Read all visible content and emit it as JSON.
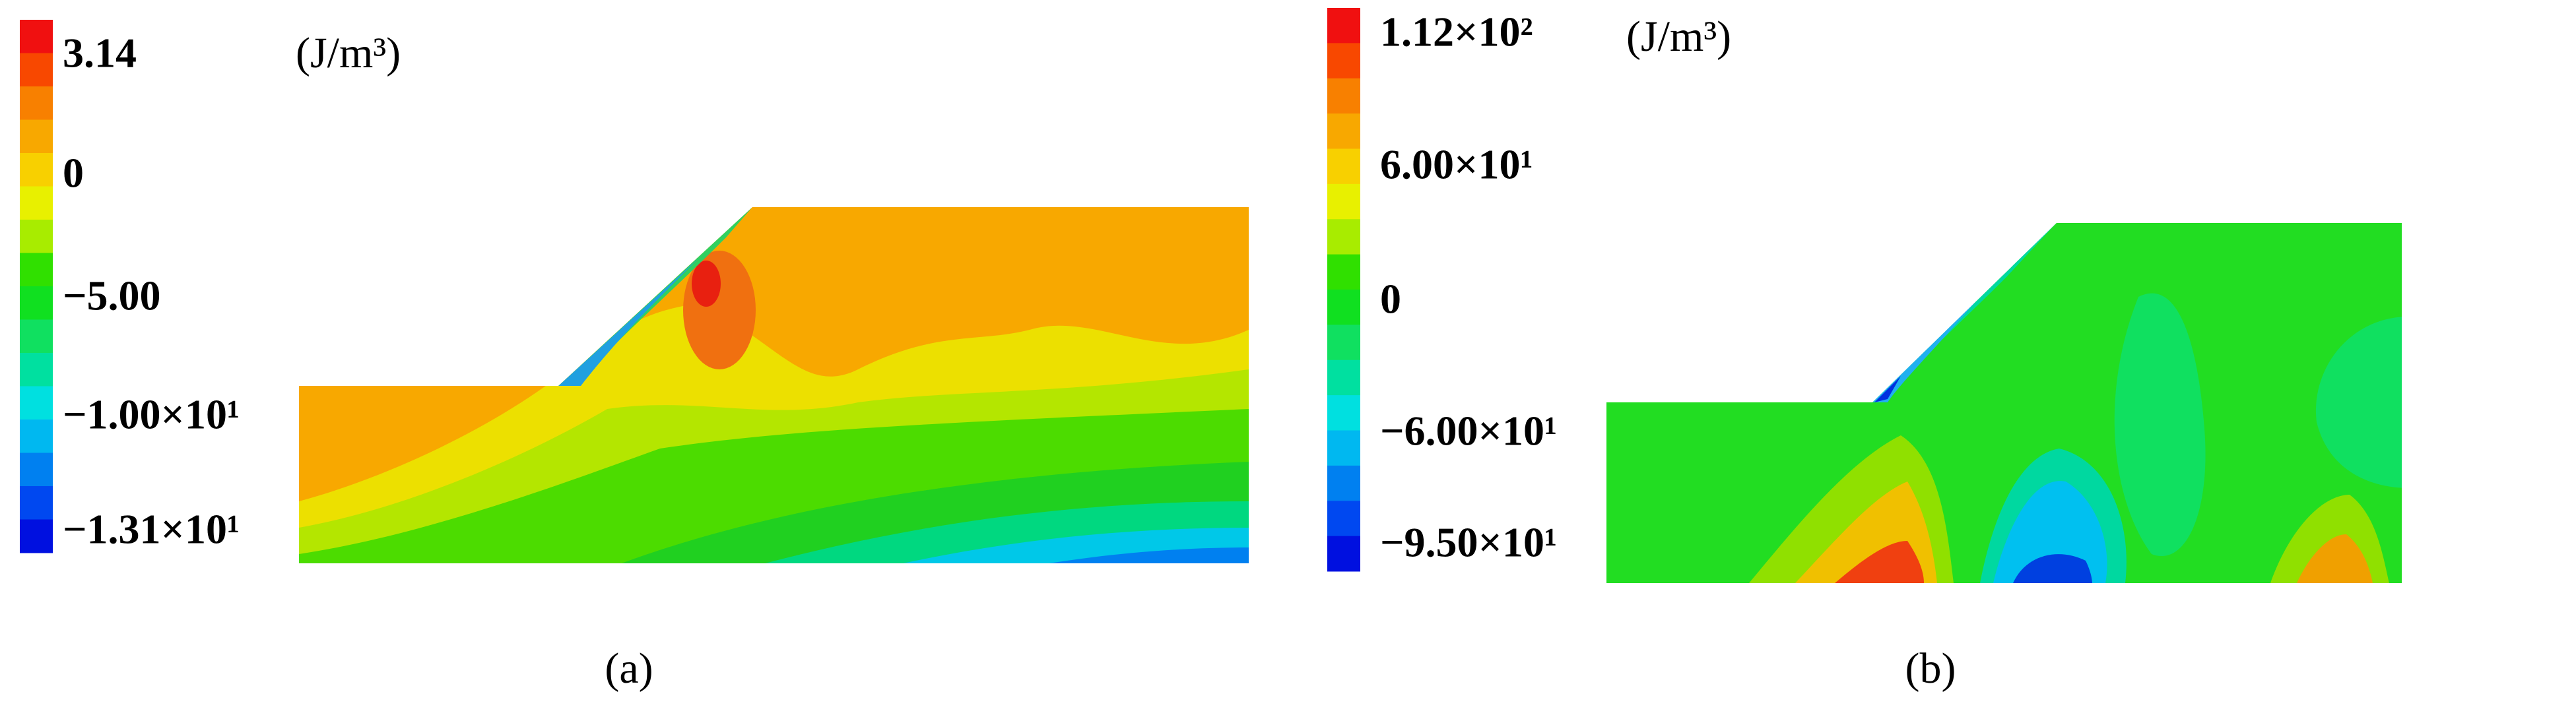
{
  "panels": [
    {
      "colorbar_labels": [
        "3.14",
        "0",
        "−5.00",
        "−1.00×10¹",
        "−1.31×10¹"
      ],
      "unit": "(J/m³)",
      "caption": "(a)"
    },
    {
      "colorbar_labels": [
        "1.12×10²",
        "6.00×10¹",
        "0",
        "−6.00×10¹",
        "−9.50×10¹"
      ],
      "unit": "(J/m³)",
      "caption": "(b)"
    }
  ]
}
